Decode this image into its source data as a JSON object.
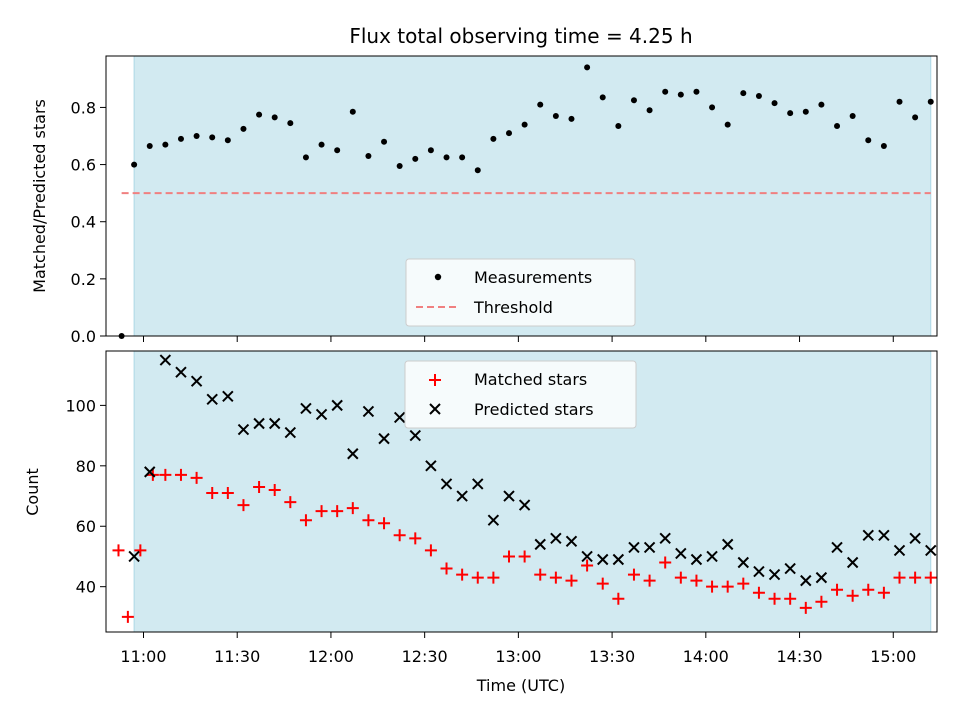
{
  "title": "Flux total observing time = 4.25 h",
  "xlabel": "Time (UTC)",
  "x_ticks": [
    "11:00",
    "11:30",
    "12:00",
    "12:30",
    "13:00",
    "13:30",
    "14:00",
    "14:30",
    "15:00"
  ],
  "colors": {
    "observing_band": "#add8e6",
    "measurements": "#000000",
    "threshold": "#f08080",
    "matched": "#ff0000",
    "predicted": "#000000"
  },
  "chart_data": [
    {
      "type": "scatter",
      "ylabel": "Matched/Predicted stars",
      "xlim": [
        "10:48",
        "15:14"
      ],
      "ylim": [
        0,
        0.98
      ],
      "y_ticks": [
        "0.0",
        "0.2",
        "0.4",
        "0.6",
        "0.8"
      ],
      "observing_band": [
        "10:57",
        "15:12"
      ],
      "legend": {
        "placement": "lower-center",
        "entries": [
          "Measurements",
          "Threshold"
        ]
      },
      "series": [
        {
          "name": "Measurements",
          "marker": "dot",
          "x": [
            "10:53",
            "10:57",
            "11:02",
            "11:07",
            "11:12",
            "11:17",
            "11:22",
            "11:27",
            "11:32",
            "11:37",
            "11:42",
            "11:47",
            "11:52",
            "11:57",
            "12:02",
            "12:07",
            "12:12",
            "12:17",
            "12:22",
            "12:27",
            "12:32",
            "12:37",
            "12:42",
            "12:47",
            "12:52",
            "12:57",
            "13:02",
            "13:07",
            "13:12",
            "13:17",
            "13:22",
            "13:27",
            "13:32",
            "13:37",
            "13:42",
            "13:47",
            "13:52",
            "13:57",
            "14:02",
            "14:07",
            "14:12",
            "14:17",
            "14:22",
            "14:27",
            "14:32",
            "14:37",
            "14:42",
            "14:47",
            "14:52",
            "14:57",
            "15:02",
            "15:07",
            "15:12"
          ],
          "y": [
            0.0,
            0.6,
            0.665,
            0.67,
            0.69,
            0.7,
            0.695,
            0.685,
            0.725,
            0.775,
            0.765,
            0.745,
            0.625,
            0.67,
            0.65,
            0.785,
            0.63,
            0.68,
            0.595,
            0.62,
            0.65,
            0.625,
            0.625,
            0.58,
            0.69,
            0.71,
            0.74,
            0.81,
            0.77,
            0.76,
            0.94,
            0.835,
            0.735,
            0.825,
            0.79,
            0.855,
            0.845,
            0.855,
            0.8,
            0.74,
            0.85,
            0.84,
            0.815,
            0.78,
            0.785,
            0.81,
            0.735,
            0.77,
            0.685,
            0.665,
            0.82,
            0.765,
            0.82
          ]
        },
        {
          "name": "Threshold",
          "style": "dashed",
          "x": [
            "10:53",
            "15:12"
          ],
          "y": [
            0.5,
            0.5
          ]
        }
      ]
    },
    {
      "type": "scatter",
      "ylabel": "Count",
      "xlim": [
        "10:48",
        "15:14"
      ],
      "ylim": [
        25,
        118
      ],
      "y_ticks": [
        "40",
        "60",
        "80",
        "100"
      ],
      "observing_band": [
        "10:57",
        "15:12"
      ],
      "legend": {
        "placement": "upper-center",
        "entries": [
          "Matched stars",
          "Predicted stars"
        ]
      },
      "series": [
        {
          "name": "Matched stars",
          "marker": "plus",
          "x": [
            "10:52",
            "10:55",
            "10:59",
            "11:03",
            "11:07",
            "11:12",
            "11:17",
            "11:22",
            "11:27",
            "11:32",
            "11:37",
            "11:42",
            "11:47",
            "11:52",
            "11:57",
            "12:02",
            "12:07",
            "12:12",
            "12:17",
            "12:22",
            "12:27",
            "12:32",
            "12:37",
            "12:42",
            "12:47",
            "12:52",
            "12:57",
            "13:02",
            "13:07",
            "13:12",
            "13:17",
            "13:22",
            "13:27",
            "13:32",
            "13:37",
            "13:42",
            "13:47",
            "13:52",
            "13:57",
            "14:02",
            "14:07",
            "14:12",
            "14:17",
            "14:22",
            "14:27",
            "14:32",
            "14:37",
            "14:42",
            "14:47",
            "14:52",
            "14:57",
            "15:02",
            "15:07",
            "15:12"
          ],
          "y": [
            52,
            30,
            52,
            77,
            77,
            77,
            76,
            71,
            71,
            67,
            73,
            72,
            68,
            62,
            65,
            65,
            66,
            62,
            61,
            57,
            56,
            52,
            46,
            44,
            43,
            43,
            50,
            50,
            44,
            43,
            42,
            47,
            41,
            36,
            44,
            42,
            48,
            43,
            42,
            40,
            40,
            41,
            38,
            36,
            36,
            33,
            35,
            39,
            37,
            39,
            38,
            43,
            43,
            43
          ]
        },
        {
          "name": "Predicted stars",
          "marker": "x",
          "x": [
            "10:57",
            "11:02",
            "11:07",
            "11:12",
            "11:17",
            "11:22",
            "11:27",
            "11:32",
            "11:37",
            "11:42",
            "11:47",
            "11:52",
            "11:57",
            "12:02",
            "12:07",
            "12:12",
            "12:17",
            "12:22",
            "12:27",
            "12:32",
            "12:37",
            "12:42",
            "12:47",
            "12:52",
            "12:57",
            "13:02",
            "13:07",
            "13:12",
            "13:17",
            "13:22",
            "13:27",
            "13:32",
            "13:37",
            "13:42",
            "13:47",
            "13:52",
            "13:57",
            "14:02",
            "14:07",
            "14:12",
            "14:17",
            "14:22",
            "14:27",
            "14:32",
            "14:37",
            "14:42",
            "14:47",
            "14:52",
            "14:57",
            "15:02",
            "15:07",
            "15:12"
          ],
          "y": [
            50,
            78,
            115,
            111,
            108,
            102,
            103,
            92,
            94,
            94,
            91,
            99,
            97,
            100,
            84,
            98,
            89,
            96,
            90,
            80,
            74,
            70,
            74,
            62,
            70,
            67,
            54,
            56,
            55,
            50,
            49,
            49,
            53,
            53,
            56,
            51,
            49,
            50,
            54,
            48,
            45,
            44,
            46,
            42,
            43,
            53,
            48,
            57,
            57,
            52,
            56,
            52
          ]
        }
      ]
    }
  ]
}
